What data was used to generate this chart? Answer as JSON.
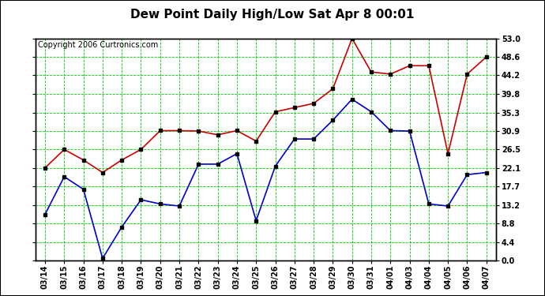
{
  "title": "Dew Point Daily High/Low Sat Apr 8 00:01",
  "copyright": "Copyright 2006 Curtronics.com",
  "x_labels": [
    "03/14",
    "03/15",
    "03/16",
    "03/17",
    "03/18",
    "03/19",
    "03/20",
    "03/21",
    "03/22",
    "03/23",
    "03/24",
    "03/25",
    "03/26",
    "03/27",
    "03/28",
    "03/29",
    "03/30",
    "03/31",
    "04/01",
    "04/03",
    "04/04",
    "04/05",
    "04/06",
    "04/07"
  ],
  "high_values": [
    22.1,
    26.5,
    24.0,
    21.0,
    24.0,
    26.5,
    31.0,
    31.0,
    30.9,
    30.0,
    31.0,
    28.5,
    35.5,
    36.5,
    37.5,
    41.0,
    53.0,
    45.0,
    44.5,
    46.5,
    46.5,
    25.5,
    44.5,
    48.6
  ],
  "low_values": [
    11.0,
    20.0,
    17.0,
    0.5,
    8.0,
    14.5,
    13.5,
    13.0,
    23.0,
    23.0,
    25.5,
    9.5,
    22.5,
    29.0,
    29.0,
    33.5,
    38.5,
    35.5,
    31.0,
    30.9,
    13.5,
    13.0,
    20.5,
    21.0
  ],
  "high_color": "#cc0000",
  "low_color": "#0000cc",
  "marker_color": "#000000",
  "bg_color": "#ffffff",
  "plot_bg_color": "#ffffff",
  "grid_color": "#00cc00",
  "ylim": [
    0.0,
    53.0
  ],
  "yticks": [
    0.0,
    4.4,
    8.8,
    13.2,
    17.7,
    22.1,
    26.5,
    30.9,
    35.3,
    39.8,
    44.2,
    48.6,
    53.0
  ],
  "ytick_labels": [
    "0.0",
    "4.4",
    "8.8",
    "13.2",
    "17.7",
    "22.1",
    "26.5",
    "30.9",
    "35.3",
    "39.8",
    "44.2",
    "48.6",
    "53.0"
  ],
  "title_fontsize": 11,
  "label_fontsize": 7,
  "copyright_fontsize": 7
}
